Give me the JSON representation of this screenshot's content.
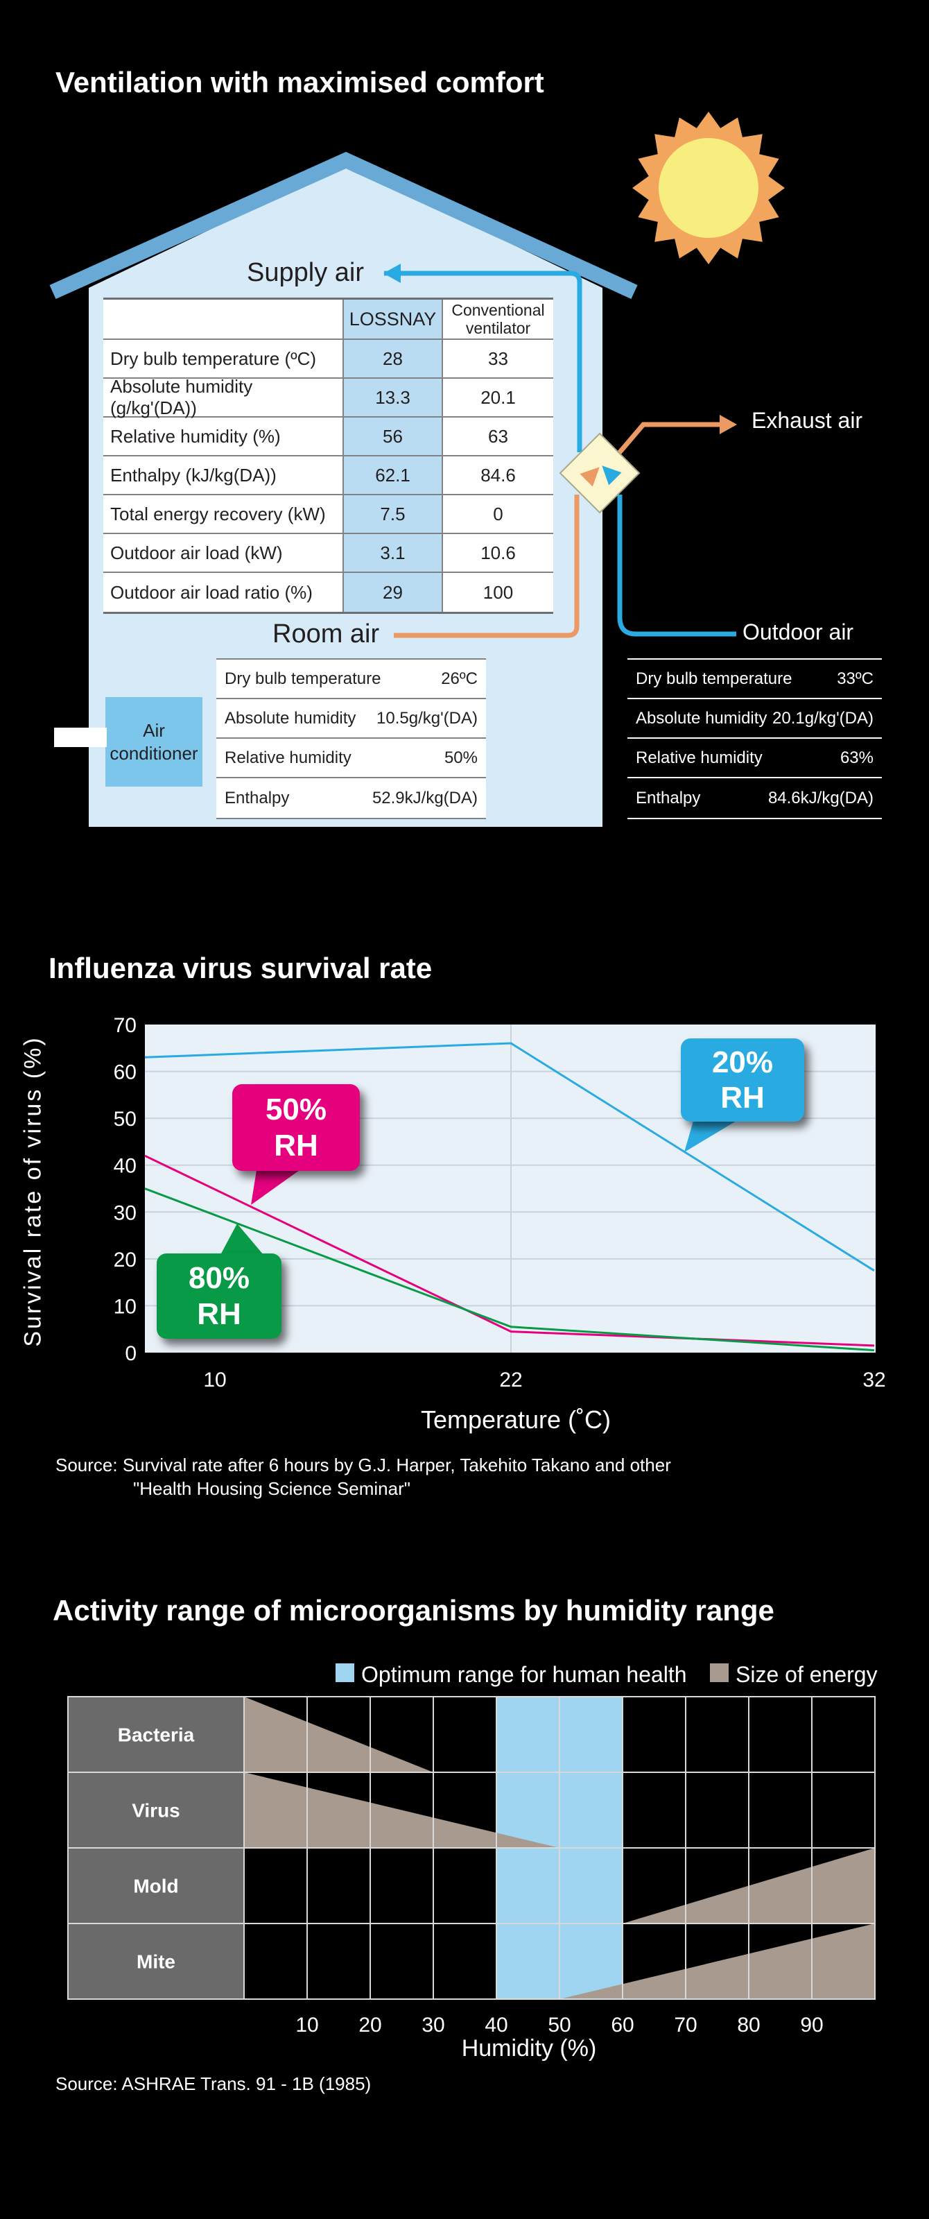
{
  "colors": {
    "accent_blue": "#29abe2",
    "pipe_orange": "#ec9a63",
    "pink": "#e5017e",
    "green": "#089a47",
    "house_fill": "#d7eaf8",
    "roof_blue": "#68a9d6",
    "lossnay_column": "#b9dcf2",
    "ac_box_blue": "#7cc6ec",
    "optimum_band_blue": "#a0d5f1",
    "energy_taupe": "#a89a8e",
    "sun_orange": "#f2a55c",
    "sun_yellow": "#f8ee7f",
    "diamond_yellow": "#fbf6d0"
  },
  "section1": {
    "title": "Ventilation with maximised comfort",
    "supply_label": "Supply air",
    "room_label": "Room air",
    "exhaust_label": "Exhaust air",
    "outdoor_label": "Outdoor air",
    "air_conditioner_label": "Air conditioner",
    "supply_table": {
      "col_lossnay": "LOSSNAY",
      "col_conventional": "Conventional ventilator",
      "rows": [
        {
          "label": "Dry bulb temperature (ºC)",
          "lossnay": "28",
          "conventional": "33"
        },
        {
          "label": "Absolute humidity (g/kg'(DA))",
          "lossnay": "13.3",
          "conventional": "20.1"
        },
        {
          "label": "Relative humidity (%)",
          "lossnay": "56",
          "conventional": "63"
        },
        {
          "label": "Enthalpy (kJ/kg(DA))",
          "lossnay": "62.1",
          "conventional": "84.6"
        },
        {
          "label": "Total energy recovery (kW)",
          "lossnay": "7.5",
          "conventional": "0"
        },
        {
          "label": "Outdoor air load (kW)",
          "lossnay": "3.1",
          "conventional": "10.6"
        },
        {
          "label": "Outdoor air load ratio (%)",
          "lossnay": "29",
          "conventional": "100"
        }
      ]
    },
    "room_table": {
      "rows": [
        {
          "label": "Dry bulb temperature",
          "value": "26ºC"
        },
        {
          "label": "Absolute humidity",
          "value": "10.5g/kg'(DA)"
        },
        {
          "label": "Relative humidity",
          "value": "50%"
        },
        {
          "label": "Enthalpy",
          "value": "52.9kJ/kg(DA)"
        }
      ]
    },
    "outdoor_table": {
      "rows": [
        {
          "label": "Dry bulb temperature",
          "value": "33ºC"
        },
        {
          "label": "Absolute humidity",
          "value": "20.1g/kg'(DA)"
        },
        {
          "label": "Relative humidity",
          "value": "63%"
        },
        {
          "label": "Enthalpy",
          "value": "84.6kJ/kg(DA)"
        }
      ]
    }
  },
  "section2": {
    "title": "Influenza virus survival rate",
    "xlabel": "Temperature (˚C)",
    "ylabel": "Survival rate of virus (%)",
    "source_line1": "Source: Survival rate after 6 hours by G.J. Harper, Takehito Takano and other",
    "source_line2": "\"Health Housing Science Seminar\"",
    "callouts": {
      "b20": {
        "l1": "20%",
        "l2": "RH"
      },
      "b50": {
        "l1": "50%",
        "l2": "RH"
      },
      "b80": {
        "l1": "80%",
        "l2": "RH"
      }
    }
  },
  "section3": {
    "title": "Activity range of microorganisms by humidity range",
    "legend_optimum": "Optimum range for human health",
    "legend_energy": "Size of energy",
    "xlabel": "Humidity (%)",
    "source": "Source: ASHRAE Trans. 91 - 1B (1985)"
  },
  "chart_data": [
    {
      "type": "line",
      "title": "Influenza virus survival rate",
      "xlabel": "Temperature (˚C)",
      "ylabel": "Survival rate of virus (%)",
      "ylim": [
        0,
        70
      ],
      "y_tick_step": 10,
      "x_ticks": [
        10,
        22,
        32
      ],
      "grid": true,
      "legend_position": "callouts-on-lines",
      "series": [
        {
          "name": "20% RH",
          "color": "#29abe2",
          "x": [
            7,
            22,
            32
          ],
          "values": [
            63,
            66,
            17.5
          ]
        },
        {
          "name": "50% RH",
          "color": "#e5017e",
          "x": [
            7,
            22,
            32
          ],
          "values": [
            42,
            4.5,
            1.5
          ]
        },
        {
          "name": "80% RH",
          "color": "#089a47",
          "x": [
            7,
            22,
            32
          ],
          "values": [
            35,
            5.5,
            0.5
          ]
        }
      ]
    },
    {
      "type": "range-triangles",
      "title": "Activity range of microorganisms by humidity range",
      "xlabel": "Humidity (%)",
      "x_range": [
        0,
        100
      ],
      "x_ticks": [
        10,
        20,
        30,
        40,
        50,
        60,
        70,
        80,
        90
      ],
      "optimum_range_percent": [
        40,
        60
      ],
      "rows": [
        {
          "label": "Bacteria",
          "from": 0,
          "to": 30,
          "peak": "left"
        },
        {
          "label": "Virus",
          "from": 0,
          "to": 50,
          "peak": "left"
        },
        {
          "label": "Mold",
          "from": 60,
          "to": 100,
          "peak": "right"
        },
        {
          "label": "Mite",
          "from": 50,
          "to": 100,
          "peak": "right"
        }
      ]
    }
  ]
}
